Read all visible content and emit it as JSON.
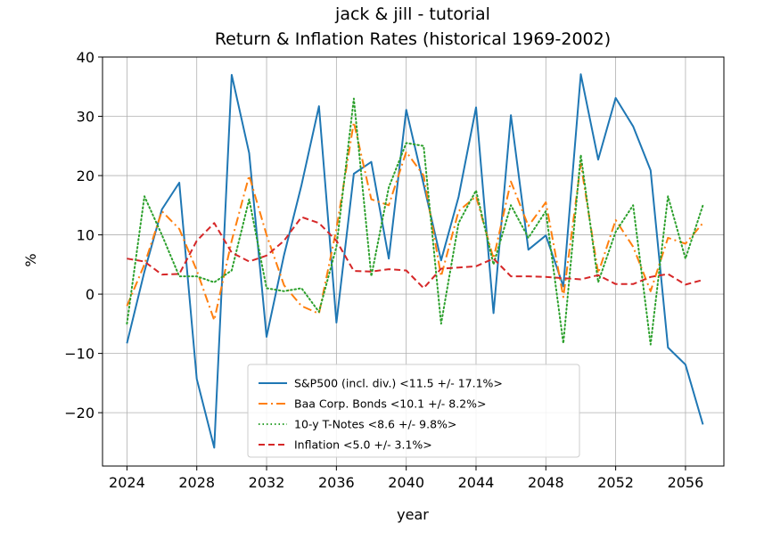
{
  "chart_data": {
    "type": "line",
    "title": "jack & jill - tutorial",
    "subtitle": "Return & Inflation Rates (historical 1969-2002)",
    "xlabel": "year",
    "ylabel": "%",
    "xlim": [
      2022.6,
      2058.2
    ],
    "ylim": [
      -29,
      40
    ],
    "xticks": [
      2024,
      2028,
      2032,
      2036,
      2040,
      2044,
      2048,
      2052,
      2056
    ],
    "yticks": [
      -20,
      -10,
      0,
      10,
      20,
      30,
      40
    ],
    "grid": true,
    "legend_position": "lower-center",
    "x": [
      2024,
      2025,
      2026,
      2027,
      2028,
      2029,
      2030,
      2031,
      2032,
      2033,
      2034,
      2035,
      2036,
      2037,
      2038,
      2039,
      2040,
      2041,
      2042,
      2043,
      2044,
      2045,
      2046,
      2047,
      2048,
      2049,
      2050,
      2051,
      2052,
      2053,
      2054,
      2055,
      2056,
      2057
    ],
    "series": [
      {
        "name": "S&P500 (incl. div.) <11.5 +/- 17.1%>",
        "color": "#1f77b4",
        "style": "solid",
        "values": [
          -8.3,
          3.8,
          14.3,
          18.8,
          -14.3,
          -25.9,
          37.0,
          23.8,
          -7.2,
          6.6,
          18.4,
          31.7,
          -4.8,
          20.3,
          22.3,
          6.0,
          31.1,
          18.5,
          5.7,
          16.4,
          31.5,
          -3.2,
          30.2,
          7.5,
          9.9,
          1.3,
          37.1,
          22.7,
          33.1,
          28.3,
          20.9,
          -9.0,
          -11.9,
          -22.0
        ]
      },
      {
        "name": "Baa Corp. Bonds <10.1 +/- 8.2%>",
        "color": "#ff7f0e",
        "style": "dashdot",
        "values": [
          -2.0,
          5.0,
          14.0,
          11.0,
          4.0,
          -4.4,
          9.0,
          20.0,
          10.0,
          1.5,
          -2.0,
          -3.3,
          11.0,
          29.0,
          16.0,
          15.0,
          24.0,
          20.0,
          3.0,
          14.0,
          16.5,
          6.0,
          19.0,
          11.5,
          15.5,
          -0.5,
          22.0,
          3.5,
          12.5,
          8.0,
          0.5,
          9.5,
          8.5,
          12.0
        ]
      },
      {
        "name": "10-y T-Notes <8.6 +/- 9.8%>",
        "color": "#2ca02c",
        "style": "dotted",
        "values": [
          -5.0,
          16.5,
          10.0,
          3.0,
          3.0,
          2.0,
          4.0,
          16.0,
          1.0,
          0.5,
          1.0,
          -3.0,
          8.0,
          33.0,
          3.0,
          18.0,
          25.5,
          25.0,
          -5.0,
          12.0,
          17.5,
          5.0,
          15.0,
          9.5,
          14.0,
          -8.3,
          23.5,
          2.0,
          10.5,
          15.0,
          -8.5,
          16.5,
          6.0,
          15.0
        ]
      },
      {
        "name": "Inflation <5.0 +/- 3.1%>",
        "color": "#d62728",
        "style": "dashed",
        "values": [
          6.0,
          5.5,
          3.3,
          3.4,
          9.0,
          12.0,
          7.0,
          5.5,
          6.5,
          9.0,
          13.0,
          12.0,
          9.0,
          3.9,
          3.8,
          4.2,
          4.0,
          1.0,
          4.3,
          4.5,
          4.7,
          6.0,
          3.0,
          3.0,
          2.9,
          2.7,
          2.5,
          3.2,
          1.7,
          1.7,
          2.9,
          3.4,
          1.6,
          2.4
        ]
      }
    ]
  }
}
